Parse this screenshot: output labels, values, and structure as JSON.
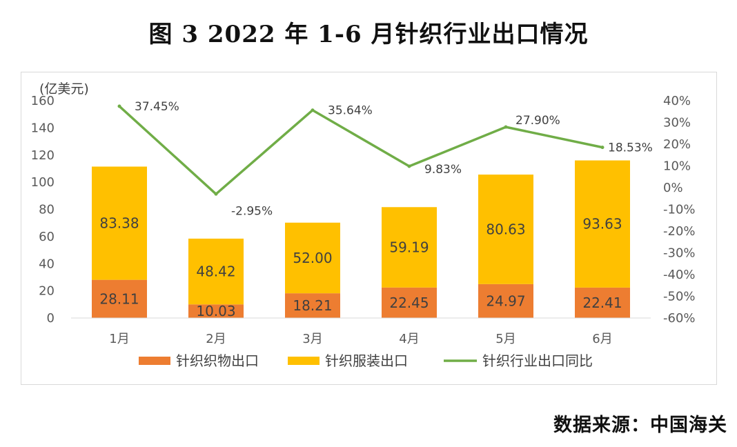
{
  "title": "图 3 2022 年 1-6 月针织行业出口情况",
  "source": "数据来源：中国海关",
  "chart_data": {
    "type": "bar",
    "stacked": true,
    "categories": [
      "1月",
      "2月",
      "3月",
      "4月",
      "5月",
      "6月"
    ],
    "series": [
      {
        "name": "针织织物出口",
        "type": "bar",
        "axis": "left",
        "color": "#ED7D31",
        "values": [
          28.11,
          10.03,
          18.21,
          22.45,
          24.97,
          22.41
        ],
        "labels": [
          "28.11",
          "10.03",
          "18.21",
          "22.45",
          "24.97",
          "22.41"
        ]
      },
      {
        "name": "针织服装出口",
        "type": "bar",
        "axis": "left",
        "color": "#FFC000",
        "values": [
          83.38,
          48.42,
          52.0,
          59.19,
          80.63,
          93.63
        ],
        "labels": [
          "83.38",
          "48.42",
          "52.00",
          "59.19",
          "80.63",
          "93.63"
        ]
      },
      {
        "name": "针织行业出口同比",
        "type": "line",
        "axis": "right",
        "color": "#70AD47",
        "values": [
          37.45,
          -2.95,
          35.64,
          9.83,
          27.9,
          18.53
        ],
        "labels": [
          "37.45%",
          "-2.95%",
          "35.64%",
          "9.83%",
          "27.90%",
          "18.53%"
        ]
      }
    ],
    "y_left": {
      "unit": "(亿美元)",
      "min": 0,
      "max": 160,
      "ticks": [
        {
          "value": 0,
          "label": "0"
        },
        {
          "value": 20,
          "label": "20"
        },
        {
          "value": 40,
          "label": "40"
        },
        {
          "value": 60,
          "label": "60"
        },
        {
          "value": 80,
          "label": "80"
        },
        {
          "value": 100,
          "label": "100"
        },
        {
          "value": 120,
          "label": "120"
        },
        {
          "value": 140,
          "label": "140"
        },
        {
          "value": 160,
          "label": "160"
        }
      ]
    },
    "y_right": {
      "min": -60,
      "max": 40,
      "ticks": [
        {
          "value": -60,
          "label": "-60%"
        },
        {
          "value": -50,
          "label": "-50%"
        },
        {
          "value": -40,
          "label": "-40%"
        },
        {
          "value": -30,
          "label": "-30%"
        },
        {
          "value": -20,
          "label": "-20%"
        },
        {
          "value": -10,
          "label": "-10%"
        },
        {
          "value": 0,
          "label": "0%"
        },
        {
          "value": 10,
          "label": "10%"
        },
        {
          "value": 20,
          "label": "20%"
        },
        {
          "value": 30,
          "label": "30%"
        },
        {
          "value": 40,
          "label": "40%"
        }
      ]
    },
    "legend": "bottom",
    "grid": false
  }
}
